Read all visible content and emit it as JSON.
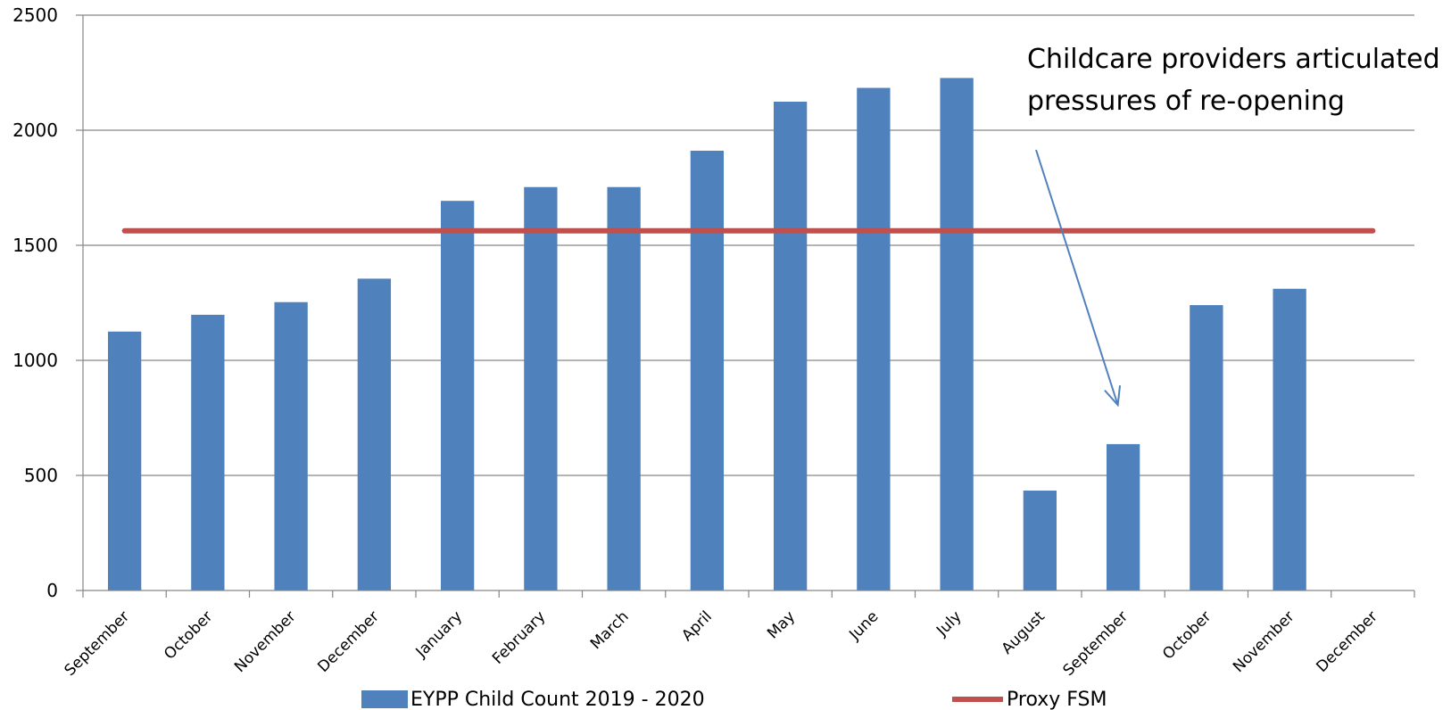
{
  "chart_data": {
    "type": "bar",
    "categories": [
      "September",
      "October",
      "November",
      "December",
      "January",
      "February",
      "March",
      "April",
      "May",
      "June",
      "July",
      "August",
      "September",
      "October",
      "November",
      "December"
    ],
    "series": [
      {
        "name": "EYPP Child Count 2019 - 2020",
        "type": "bar",
        "color": "#4F81BD",
        "values": [
          1125,
          1198,
          1253,
          1355,
          1693,
          1753,
          1753,
          1911,
          2124,
          2184,
          2227,
          434,
          636,
          1240,
          1311,
          null
        ]
      },
      {
        "name": "Proxy FSM",
        "type": "line",
        "color": "#C0504D",
        "values": [
          1563,
          1563,
          1563,
          1563,
          1563,
          1563,
          1563,
          1563,
          1563,
          1563,
          1563,
          1563,
          1563,
          1563,
          1563,
          1563
        ]
      }
    ],
    "ylim": [
      0,
      2500
    ],
    "yticks": [
      0,
      500,
      1000,
      1500,
      2000,
      2500
    ],
    "grid": true,
    "legend": "bottom",
    "annotation": {
      "lines": [
        "Childcare providers articulated",
        "pressures of re-opening"
      ],
      "points_to_category_index": 12,
      "arrow_color": "#4F81BD"
    }
  }
}
